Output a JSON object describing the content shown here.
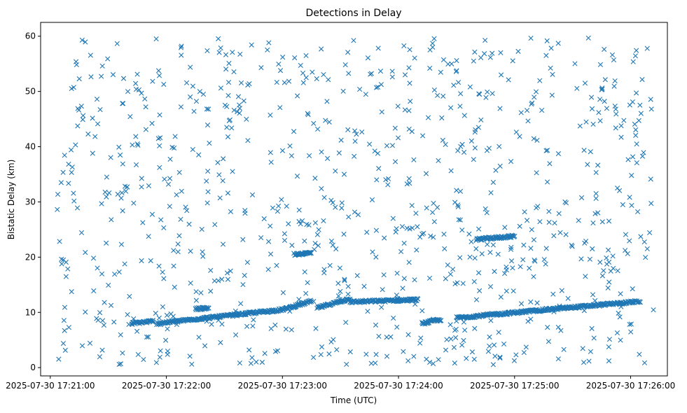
{
  "chart_data": {
    "type": "scatter",
    "title": "Detections in Delay",
    "xlabel": "Time (UTC)",
    "ylabel": "Bistatic Delay (km)",
    "x_ticks": [
      "2025-07-30 17:21:00",
      "2025-07-30 17:22:00",
      "2025-07-30 17:23:00",
      "2025-07-30 17:24:00",
      "2025-07-30 17:25:00",
      "2025-07-30 17:26:00"
    ],
    "y_ticks": [
      0,
      10,
      20,
      30,
      40,
      50,
      60
    ],
    "xlim": [
      "2025-07-30 17:20:55",
      "2025-07-30 17:26:19"
    ],
    "ylim": [
      -1.5,
      62.5
    ],
    "marker": "x",
    "color": "#1f77b4",
    "grid": false,
    "noise_count": 900,
    "series": [
      {
        "name": "",
        "tracks": [
          {
            "start": "2025-07-30 17:21:42",
            "end": "2025-07-30 17:21:53",
            "delay_start": 8.0,
            "delay_end": 8.4
          },
          {
            "start": "2025-07-30 17:21:55",
            "end": "2025-07-30 17:23:00",
            "delay_start": 8.0,
            "delay_end": 10.5
          },
          {
            "start": "2025-07-30 17:23:00",
            "end": "2025-07-30 17:23:15",
            "delay_start": 10.5,
            "delay_end": 12.0
          },
          {
            "start": "2025-07-30 17:23:18",
            "end": "2025-07-30 17:23:35",
            "delay_start": 10.8,
            "delay_end": 12.5
          },
          {
            "start": "2025-07-30 17:23:35",
            "end": "2025-07-30 17:24:10",
            "delay_start": 11.9,
            "delay_end": 12.3
          },
          {
            "start": "2025-07-30 17:24:12",
            "end": "2025-07-30 17:24:22",
            "delay_start": 8.0,
            "delay_end": 8.7
          },
          {
            "start": "2025-07-30 17:24:30",
            "end": "2025-07-30 17:25:20",
            "delay_start": 9.0,
            "delay_end": 10.6
          },
          {
            "start": "2025-07-30 17:25:20",
            "end": "2025-07-30 17:26:05",
            "delay_start": 10.6,
            "delay_end": 12.0
          },
          {
            "start": "2025-07-30 17:22:15",
            "end": "2025-07-30 17:22:22",
            "delay_start": 10.6,
            "delay_end": 10.8
          },
          {
            "start": "2025-07-30 17:24:40",
            "end": "2025-07-30 17:25:00",
            "delay_start": 23.2,
            "delay_end": 23.8
          },
          {
            "start": "2025-07-30 17:23:06",
            "end": "2025-07-30 17:23:15",
            "delay_start": 20.5,
            "delay_end": 20.8
          }
        ]
      }
    ]
  }
}
